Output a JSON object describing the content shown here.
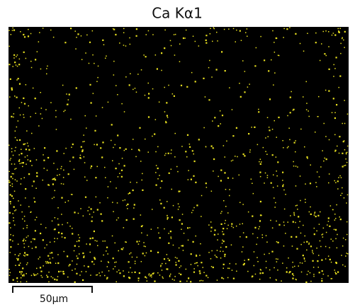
{
  "title": "Ca Kα1",
  "scale_bar": {
    "label": "50µm"
  }
}
